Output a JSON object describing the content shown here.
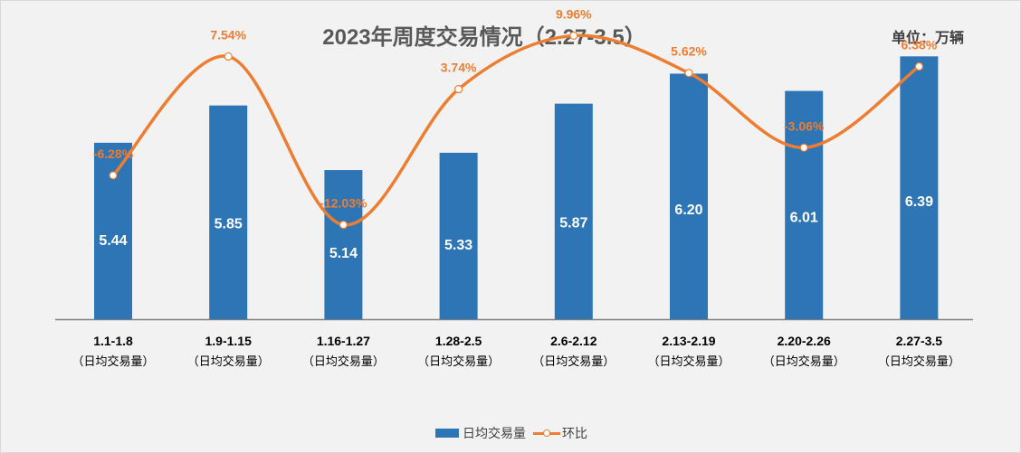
{
  "chart_data": {
    "type": "bar",
    "title": "2023年周度交易情况（2.27-3.5）",
    "unit": "单位：万辆",
    "categories": [
      "1.1-1.8",
      "1.9-1.15",
      "1.16-1.27",
      "1.28-2.5",
      "2.6-2.12",
      "2.13-2.19",
      "2.20-2.26",
      "2.27-3.5"
    ],
    "category_sublabel": "（日均交易量）",
    "series": [
      {
        "name": "日均交易量",
        "kind": "bar",
        "color": "#2e75b6",
        "values": [
          5.44,
          5.85,
          5.14,
          5.33,
          5.87,
          6.2,
          6.01,
          6.39
        ],
        "labels": [
          "5.44",
          "5.85",
          "5.14",
          "5.33",
          "5.87",
          "6.20",
          "6.01",
          "6.39"
        ]
      },
      {
        "name": "环比",
        "kind": "line",
        "color": "#ed7d31",
        "values": [
          -6.28,
          7.54,
          -12.03,
          3.74,
          9.96,
          5.62,
          -3.06,
          6.38
        ],
        "labels": [
          "-6.28%",
          "7.54%",
          "-12.03%",
          "3.74%",
          "9.96%",
          "5.62%",
          "-3.06%",
          "6.38%"
        ]
      }
    ],
    "bar_axis_range": [
      3.5,
      7.0
    ],
    "line_axis_range": [
      -23.0,
      14.0
    ],
    "legend": [
      "日均交易量",
      "环比"
    ],
    "legend_position": "bottom"
  }
}
